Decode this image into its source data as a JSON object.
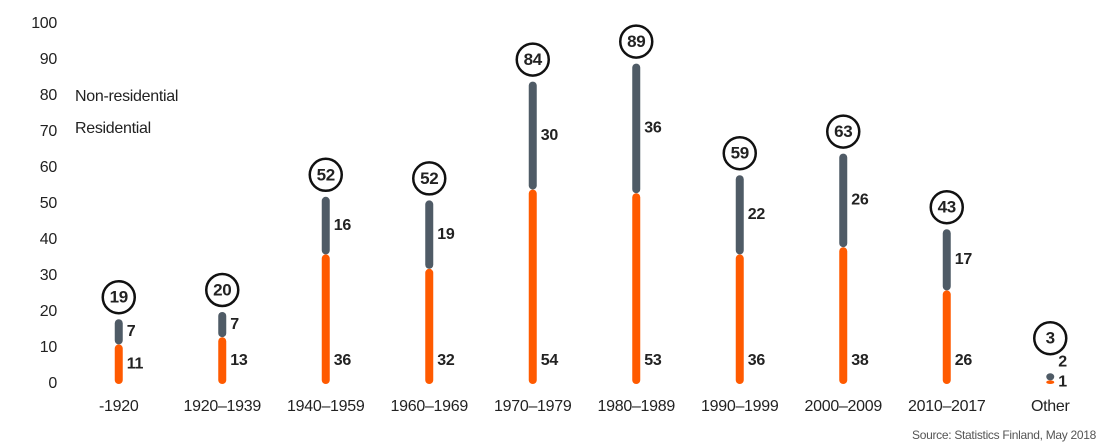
{
  "chart_data": {
    "type": "bar",
    "stacked": true,
    "categories": [
      "-1920",
      "1920–1939",
      "1940–1959",
      "1960–1969",
      "1970–1979",
      "1980–1989",
      "1990–1999",
      "2000–2009",
      "2010–2017",
      "Other"
    ],
    "series": [
      {
        "name": "Residential",
        "color": "#ff5a00",
        "values": [
          11,
          13,
          36,
          32,
          54,
          53,
          36,
          38,
          26,
          1
        ]
      },
      {
        "name": "Non-residential",
        "color": "#4f5b66",
        "values": [
          7,
          7,
          16,
          19,
          30,
          36,
          22,
          26,
          17,
          2
        ]
      }
    ],
    "totals": [
      19,
      20,
      52,
      52,
      84,
      89,
      59,
      63,
      43,
      3
    ],
    "ylim": [
      0,
      100
    ],
    "yticks": [
      0,
      10,
      20,
      30,
      40,
      50,
      60,
      70,
      80,
      90,
      100
    ],
    "grid": false,
    "source": "Source: Statistics Finland, May 2018"
  }
}
